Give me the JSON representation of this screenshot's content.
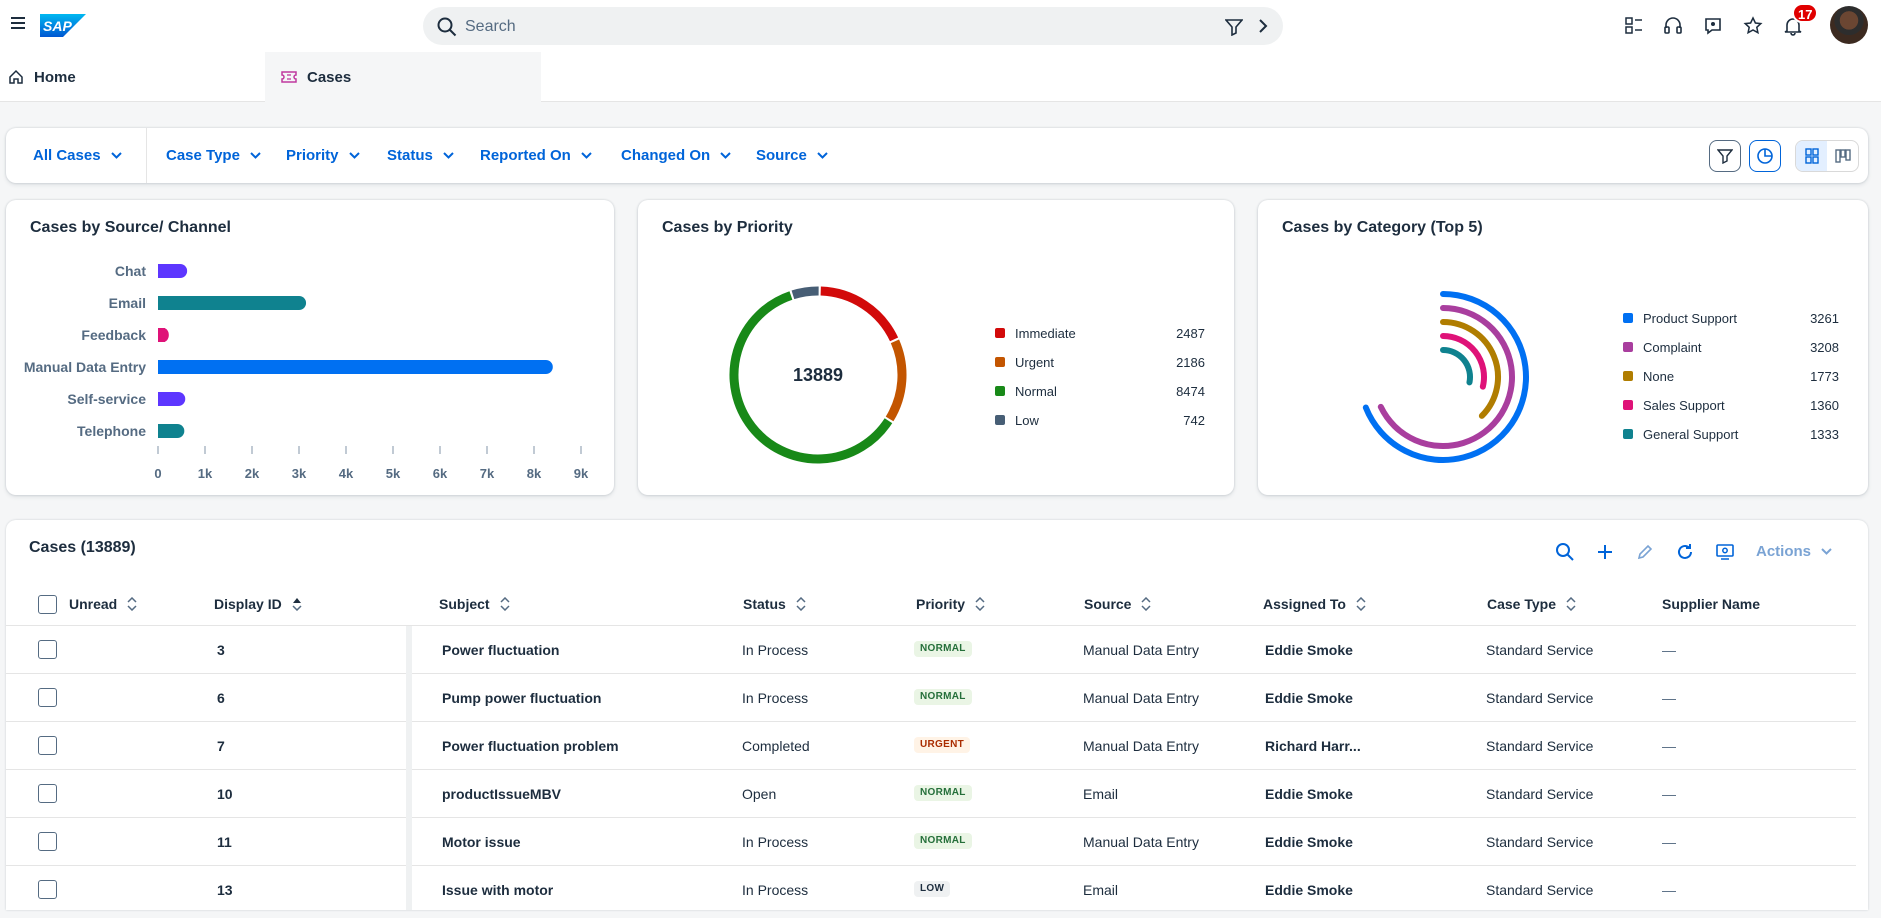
{
  "shell": {
    "search_placeholder": "Search",
    "notification_count": "17"
  },
  "tabs": [
    {
      "label": "Home"
    },
    {
      "label": "Cases"
    }
  ],
  "filters": [
    "All Cases",
    "Case Type",
    "Priority",
    "Status",
    "Reported On",
    "Changed On",
    "Source"
  ],
  "cards": {
    "source_title": "Cases by Source/ Channel",
    "priority_title": "Cases by Priority",
    "category_title": "Cases by Category (Top 5)"
  },
  "chart_data": [
    {
      "type": "bar",
      "title": "Cases by Source/ Channel",
      "orientation": "horizontal",
      "categories": [
        "Chat",
        "Email",
        "Feedback",
        "Manual Data Entry",
        "Self-service",
        "Telephone"
      ],
      "values": [
        620,
        3150,
        230,
        8400,
        580,
        560
      ],
      "colors": [
        "#5d36ff",
        "#0f828f",
        "#df1278",
        "#0070f2",
        "#5d36ff",
        "#0f828f"
      ],
      "xlim": [
        0,
        9000
      ],
      "xticks": [
        "0",
        "1k",
        "2k",
        "3k",
        "4k",
        "5k",
        "6k",
        "7k",
        "8k",
        "9k"
      ]
    },
    {
      "type": "pie",
      "variant": "donut",
      "title": "Cases by Priority",
      "center_label": "13889",
      "categories": [
        "Immediate",
        "Urgent",
        "Normal",
        "Low"
      ],
      "values": [
        2487,
        2186,
        8474,
        742
      ],
      "colors": [
        "#d20a0a",
        "#c35500",
        "#188918",
        "#475e75"
      ]
    },
    {
      "type": "pie",
      "variant": "radial-bar",
      "title": "Cases by Category (Top 5)",
      "categories": [
        "Product Support",
        "Complaint",
        "None",
        "Sales Support",
        "General Support"
      ],
      "values": [
        3261,
        3208,
        1773,
        1360,
        1333
      ],
      "colors": [
        "#0070f2",
        "#a93e9e",
        "#b07d00",
        "#df1278",
        "#0f828f"
      ]
    }
  ],
  "table": {
    "title": "Cases (13889)",
    "actions_label": "Actions",
    "columns": [
      "Unread",
      "Display ID",
      "Subject",
      "Status",
      "Priority",
      "Source",
      "Assigned To",
      "Case Type",
      "Supplier Name"
    ],
    "rows": [
      {
        "id": "3",
        "subject": "Power fluctuation",
        "status": "In Process",
        "priority": "NORMAL",
        "source": "Manual Data Entry",
        "assigned": "Eddie Smoke",
        "type": "Standard Service",
        "supplier": "—"
      },
      {
        "id": "6",
        "subject": "Pump power fluctuation",
        "status": "In Process",
        "priority": "NORMAL",
        "source": "Manual Data Entry",
        "assigned": "Eddie Smoke",
        "type": "Standard Service",
        "supplier": "—"
      },
      {
        "id": "7",
        "subject": "Power fluctuation problem",
        "status": "Completed",
        "priority": "URGENT",
        "source": "Manual Data Entry",
        "assigned": "Richard Harr...",
        "type": "Standard Service",
        "supplier": "—"
      },
      {
        "id": "10",
        "subject": "productIssueMBV",
        "status": "Open",
        "priority": "NORMAL",
        "source": "Email",
        "assigned": "Eddie Smoke",
        "type": "Standard Service",
        "supplier": "—"
      },
      {
        "id": "11",
        "subject": "Motor issue",
        "status": "In Process",
        "priority": "NORMAL",
        "source": "Manual Data Entry",
        "assigned": "Eddie Smoke",
        "type": "Standard Service",
        "supplier": "—"
      },
      {
        "id": "13",
        "subject": "Issue with motor",
        "status": "In Process",
        "priority": "LOW",
        "source": "Email",
        "assigned": "Eddie Smoke",
        "type": "Standard Service",
        "supplier": "—"
      }
    ]
  },
  "colors": {
    "brand": "#0070f2",
    "link": "#0064d9",
    "text": "#1d2d3e"
  }
}
